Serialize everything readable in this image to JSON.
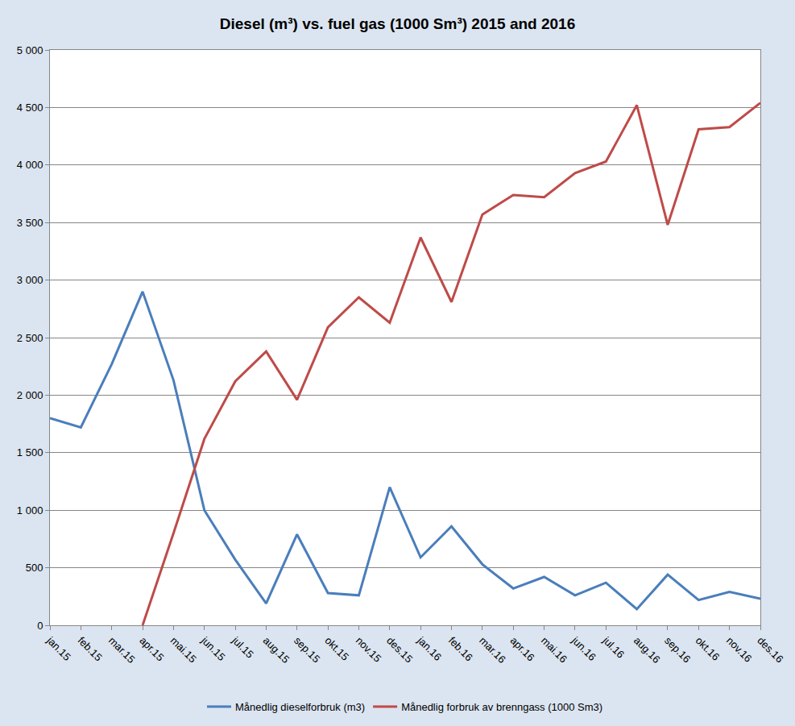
{
  "chart_data": {
    "type": "line",
    "title": "Diesel (m³) vs. fuel gas (1000 Sm³) 2015 and 2016",
    "categories": [
      "jan.15",
      "feb.15",
      "mar.15",
      "apr.15",
      "mai.15",
      "jun.15",
      "jul.15",
      "aug.15",
      "sep.15",
      "okt.15",
      "nov.15",
      "des.15",
      "jan.16",
      "feb.16",
      "mar.16",
      "apr.16",
      "mai.16",
      "jun.16",
      "jul.16",
      "aug.16",
      "sep.16",
      "okt.16",
      "nov.16",
      "des.16"
    ],
    "series": [
      {
        "name": "Månedlig dieselforbruk (m3)",
        "color": "#4a7ebb",
        "values": [
          1800,
          1720,
          2270,
          2900,
          2130,
          1000,
          570,
          190,
          790,
          280,
          260,
          1200,
          590,
          860,
          530,
          320,
          420,
          260,
          370,
          140,
          440,
          220,
          290,
          230
        ]
      },
      {
        "name": "Månedlig forbruk av brenngass (1000 Sm3)",
        "color": "#be4b48",
        "values": [
          null,
          null,
          null,
          0,
          800,
          1620,
          2120,
          2380,
          1960,
          2590,
          2850,
          2630,
          3370,
          2810,
          3570,
          3740,
          3720,
          3930,
          4030,
          4520,
          3480,
          4310,
          4330,
          4540
        ]
      }
    ],
    "ylim": [
      0,
      5000
    ],
    "yticks": [
      0,
      500,
      {
        "value": 1000,
        "label": "1 000"
      },
      {
        "value": 1500,
        "label": "1 500"
      },
      {
        "value": 2000,
        "label": "2 000"
      },
      {
        "value": 2500,
        "label": "2 500"
      },
      {
        "value": 3000,
        "label": "3 000"
      },
      {
        "value": 3500,
        "label": "3 500"
      },
      {
        "value": 4000,
        "label": "4 000"
      },
      {
        "value": 4500,
        "label": "4 500"
      },
      {
        "value": 5000,
        "label": "5 000"
      }
    ],
    "grid": true,
    "legend": "bottom"
  }
}
